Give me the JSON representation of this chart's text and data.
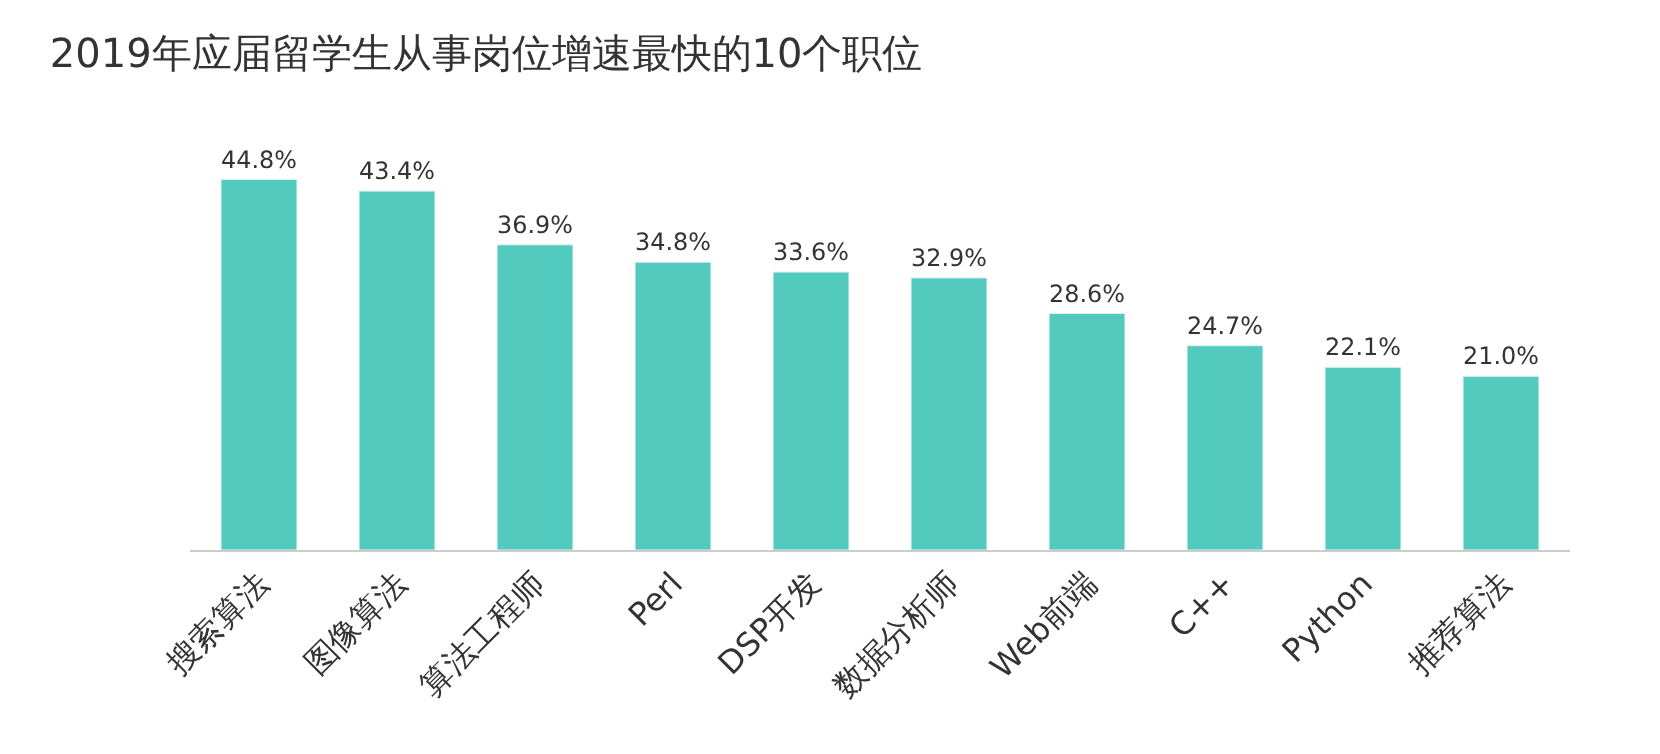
{
  "chart_data": {
    "type": "bar",
    "title": "2019年应届留学生从事岗位增速最快的10个职位",
    "categories": [
      "搜索算法",
      "图像算法",
      "算法工程师",
      "Perl",
      "DSP开发",
      "数据分析师",
      "Web前端",
      "C++",
      "Python",
      "推荐算法"
    ],
    "values": [
      44.8,
      43.4,
      36.9,
      34.8,
      33.6,
      32.9,
      28.6,
      24.7,
      22.1,
      21.0
    ],
    "value_labels": [
      "44.8%",
      "43.4%",
      "36.9%",
      "34.8%",
      "33.6%",
      "32.9%",
      "28.6%",
      "24.7%",
      "22.1%",
      "21.0%"
    ],
    "color": "#52cbbe",
    "tick_labels": "x"
  }
}
